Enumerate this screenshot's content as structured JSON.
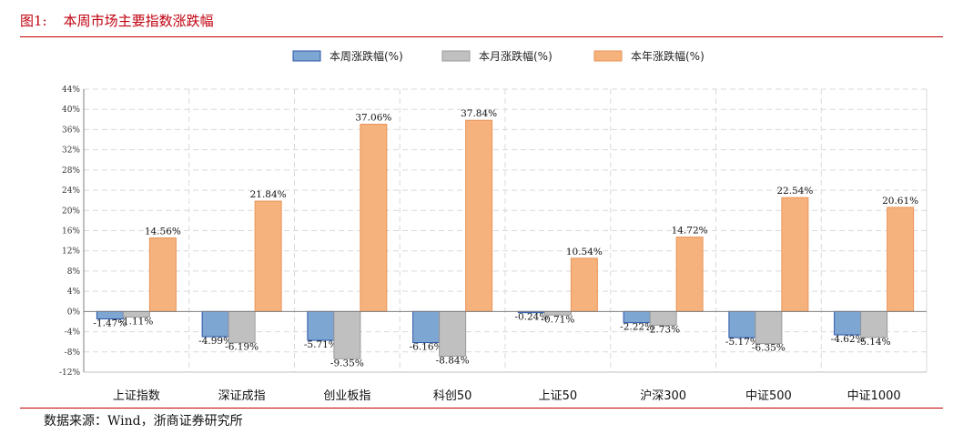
{
  "figure": {
    "prefix": "图1:",
    "title": "本周市场主要指数涨跌幅",
    "source": "数据来源：Wind，浙商证券研究所"
  },
  "chart_data": {
    "type": "bar",
    "title": "本周市场主要指数涨跌幅",
    "categories": [
      "上证指数",
      "深证成指",
      "创业板指",
      "科创50",
      "上证50",
      "沪深300",
      "中证500",
      "中证1000"
    ],
    "series": [
      {
        "name": "本周涨跌幅(%)",
        "color": "#7ea6d3",
        "stroke": "#2b56a8",
        "values": [
          -1.47,
          -4.99,
          -5.71,
          -6.16,
          -0.24,
          -2.22,
          -5.17,
          -4.62
        ],
        "labels": [
          "-1.47%",
          "-4.99%",
          "-5.71%",
          "-6.16%",
          "-0.24%",
          "-2.22%",
          "-5.17%",
          "-4.62%"
        ]
      },
      {
        "name": "本月涨跌幅(%)",
        "color": "#c0c0c0",
        "stroke": "#9a9a9a",
        "values": [
          -1.11,
          -6.19,
          -9.35,
          -8.84,
          -0.71,
          -2.73,
          -6.35,
          -5.14
        ],
        "labels": [
          "-1.11%",
          "-6.19%",
          "-9.35%",
          "-8.84%",
          "-0.71%",
          "-2.73%",
          "-6.35%",
          "-5.14%"
        ]
      },
      {
        "name": "本年涨跌幅(%)",
        "color": "#f5b27c",
        "stroke": "#e9955a",
        "values": [
          14.56,
          21.84,
          37.06,
          37.84,
          10.54,
          14.72,
          22.54,
          20.61
        ],
        "labels": [
          "14.56%",
          "21.84%",
          "37.06%",
          "37.84%",
          "10.54%",
          "14.72%",
          "22.54%",
          "20.61%"
        ]
      }
    ],
    "ylim": [
      -12,
      44
    ],
    "yticks": [
      "-12%",
      "-8%",
      "-4%",
      "0%",
      "4%",
      "8%",
      "12%",
      "16%",
      "20%",
      "24%",
      "28%",
      "32%",
      "36%",
      "40%",
      "44%"
    ],
    "ytick_values": [
      -12,
      -8,
      -4,
      0,
      4,
      8,
      12,
      16,
      20,
      24,
      28,
      32,
      36,
      40,
      44
    ],
    "grid": true,
    "legend": "top-center"
  }
}
